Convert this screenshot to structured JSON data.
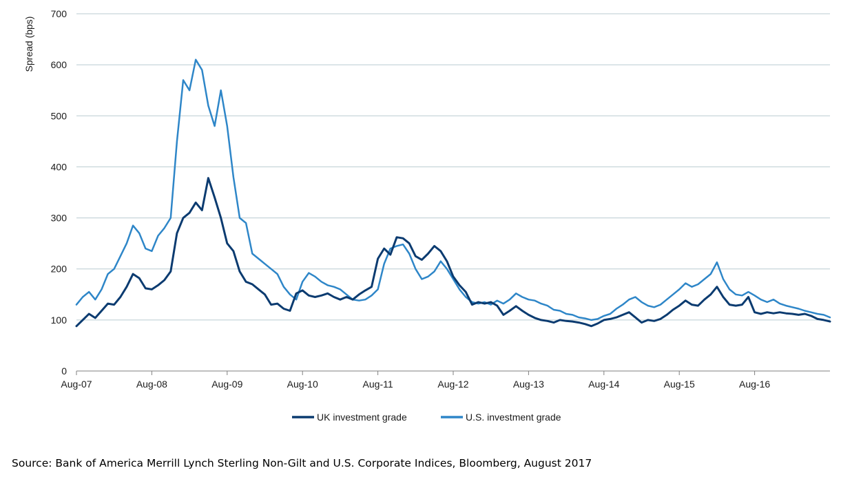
{
  "source": "Source: Bank of America Merrill Lynch Sterling Non-Gilt and U.S. Corporate Indices, Bloomberg, August 2017",
  "chart_data": {
    "type": "line",
    "ylabel": "Spread (bps)",
    "xlabel": "",
    "ylim": [
      0,
      700
    ],
    "yticks": [
      0,
      100,
      200,
      300,
      400,
      500,
      600,
      700
    ],
    "x_tick_labels": [
      "Aug-07",
      "Aug-08",
      "Aug-09",
      "Aug-10",
      "Aug-11",
      "Aug-12",
      "Aug-13",
      "Aug-14",
      "Aug-15",
      "Aug-16"
    ],
    "x_range": [
      "2007-08",
      "2017-08"
    ],
    "grid": "horizontal",
    "legend_position": "bottom",
    "series": [
      {
        "name": "UK investment grade",
        "color": "#0b3b70",
        "points": [
          [
            "2007-08",
            88
          ],
          [
            "2007-09",
            100
          ],
          [
            "2007-10",
            112
          ],
          [
            "2007-11",
            104
          ],
          [
            "2007-12",
            118
          ],
          [
            "2008-01",
            132
          ],
          [
            "2008-02",
            130
          ],
          [
            "2008-03",
            145
          ],
          [
            "2008-04",
            165
          ],
          [
            "2008-05",
            190
          ],
          [
            "2008-06",
            182
          ],
          [
            "2008-07",
            162
          ],
          [
            "2008-08",
            160
          ],
          [
            "2008-09",
            168
          ],
          [
            "2008-10",
            178
          ],
          [
            "2008-11",
            195
          ],
          [
            "2008-12",
            270
          ],
          [
            "2009-01",
            300
          ],
          [
            "2009-02",
            310
          ],
          [
            "2009-03",
            330
          ],
          [
            "2009-04",
            315
          ],
          [
            "2009-05",
            378
          ],
          [
            "2009-06",
            340
          ],
          [
            "2009-07",
            300
          ],
          [
            "2009-08",
            250
          ],
          [
            "2009-09",
            235
          ],
          [
            "2009-10",
            195
          ],
          [
            "2009-11",
            175
          ],
          [
            "2009-12",
            170
          ],
          [
            "2010-01",
            160
          ],
          [
            "2010-02",
            150
          ],
          [
            "2010-03",
            130
          ],
          [
            "2010-04",
            132
          ],
          [
            "2010-05",
            122
          ],
          [
            "2010-06",
            118
          ],
          [
            "2010-07",
            152
          ],
          [
            "2010-08",
            158
          ],
          [
            "2010-09",
            148
          ],
          [
            "2010-10",
            145
          ],
          [
            "2010-11",
            148
          ],
          [
            "2010-12",
            152
          ],
          [
            "2011-01",
            145
          ],
          [
            "2011-02",
            140
          ],
          [
            "2011-03",
            145
          ],
          [
            "2011-04",
            140
          ],
          [
            "2011-05",
            150
          ],
          [
            "2011-06",
            158
          ],
          [
            "2011-07",
            165
          ],
          [
            "2011-08",
            220
          ],
          [
            "2011-09",
            240
          ],
          [
            "2011-10",
            228
          ],
          [
            "2011-11",
            262
          ],
          [
            "2011-12",
            260
          ],
          [
            "2012-01",
            250
          ],
          [
            "2012-02",
            225
          ],
          [
            "2012-03",
            218
          ],
          [
            "2012-04",
            230
          ],
          [
            "2012-05",
            245
          ],
          [
            "2012-06",
            235
          ],
          [
            "2012-07",
            215
          ],
          [
            "2012-08",
            185
          ],
          [
            "2012-09",
            168
          ],
          [
            "2012-10",
            155
          ],
          [
            "2012-11",
            130
          ],
          [
            "2012-12",
            135
          ],
          [
            "2013-01",
            132
          ],
          [
            "2013-02",
            135
          ],
          [
            "2013-03",
            128
          ],
          [
            "2013-04",
            110
          ],
          [
            "2013-05",
            118
          ],
          [
            "2013-06",
            127
          ],
          [
            "2013-07",
            118
          ],
          [
            "2013-08",
            110
          ],
          [
            "2013-09",
            104
          ],
          [
            "2013-10",
            100
          ],
          [
            "2013-11",
            98
          ],
          [
            "2013-12",
            95
          ],
          [
            "2014-01",
            100
          ],
          [
            "2014-02",
            98
          ],
          [
            "2014-03",
            97
          ],
          [
            "2014-04",
            95
          ],
          [
            "2014-05",
            92
          ],
          [
            "2014-06",
            88
          ],
          [
            "2014-07",
            93
          ],
          [
            "2014-08",
            100
          ],
          [
            "2014-09",
            102
          ],
          [
            "2014-10",
            105
          ],
          [
            "2014-11",
            110
          ],
          [
            "2014-12",
            115
          ],
          [
            "2015-01",
            105
          ],
          [
            "2015-02",
            95
          ],
          [
            "2015-03",
            100
          ],
          [
            "2015-04",
            98
          ],
          [
            "2015-05",
            102
          ],
          [
            "2015-06",
            110
          ],
          [
            "2015-07",
            120
          ],
          [
            "2015-08",
            128
          ],
          [
            "2015-09",
            138
          ],
          [
            "2015-10",
            130
          ],
          [
            "2015-11",
            128
          ],
          [
            "2015-12",
            140
          ],
          [
            "2016-01",
            150
          ],
          [
            "2016-02",
            165
          ],
          [
            "2016-03",
            145
          ],
          [
            "2016-04",
            130
          ],
          [
            "2016-05",
            128
          ],
          [
            "2016-06",
            130
          ],
          [
            "2016-07",
            145
          ],
          [
            "2016-08",
            115
          ],
          [
            "2016-09",
            112
          ],
          [
            "2016-10",
            115
          ],
          [
            "2016-11",
            113
          ],
          [
            "2016-12",
            115
          ],
          [
            "2017-01",
            113
          ],
          [
            "2017-02",
            112
          ],
          [
            "2017-03",
            110
          ],
          [
            "2017-04",
            112
          ],
          [
            "2017-05",
            108
          ],
          [
            "2017-06",
            102
          ],
          [
            "2017-07",
            100
          ],
          [
            "2017-08",
            97
          ]
        ]
      },
      {
        "name": "U.S. investment grade",
        "color": "#2e86c8",
        "points": [
          [
            "2007-08",
            130
          ],
          [
            "2007-09",
            145
          ],
          [
            "2007-10",
            155
          ],
          [
            "2007-11",
            140
          ],
          [
            "2007-12",
            160
          ],
          [
            "2008-01",
            190
          ],
          [
            "2008-02",
            200
          ],
          [
            "2008-03",
            225
          ],
          [
            "2008-04",
            250
          ],
          [
            "2008-05",
            285
          ],
          [
            "2008-06",
            270
          ],
          [
            "2008-07",
            240
          ],
          [
            "2008-08",
            235
          ],
          [
            "2008-09",
            265
          ],
          [
            "2008-10",
            280
          ],
          [
            "2008-11",
            300
          ],
          [
            "2008-12",
            450
          ],
          [
            "2009-01",
            570
          ],
          [
            "2009-02",
            550
          ],
          [
            "2009-03",
            610
          ],
          [
            "2009-04",
            590
          ],
          [
            "2009-05",
            520
          ],
          [
            "2009-06",
            480
          ],
          [
            "2009-07",
            550
          ],
          [
            "2009-08",
            480
          ],
          [
            "2009-09",
            380
          ],
          [
            "2009-10",
            300
          ],
          [
            "2009-11",
            290
          ],
          [
            "2009-12",
            230
          ],
          [
            "2010-01",
            220
          ],
          [
            "2010-02",
            210
          ],
          [
            "2010-03",
            200
          ],
          [
            "2010-04",
            190
          ],
          [
            "2010-05",
            165
          ],
          [
            "2010-06",
            150
          ],
          [
            "2010-07",
            140
          ],
          [
            "2010-08",
            175
          ],
          [
            "2010-09",
            192
          ],
          [
            "2010-10",
            185
          ],
          [
            "2010-11",
            175
          ],
          [
            "2010-12",
            168
          ],
          [
            "2011-01",
            165
          ],
          [
            "2011-02",
            160
          ],
          [
            "2011-03",
            150
          ],
          [
            "2011-04",
            140
          ],
          [
            "2011-05",
            138
          ],
          [
            "2011-06",
            140
          ],
          [
            "2011-07",
            148
          ],
          [
            "2011-08",
            160
          ],
          [
            "2011-09",
            210
          ],
          [
            "2011-10",
            240
          ],
          [
            "2011-11",
            245
          ],
          [
            "2011-12",
            248
          ],
          [
            "2012-01",
            230
          ],
          [
            "2012-02",
            200
          ],
          [
            "2012-03",
            180
          ],
          [
            "2012-04",
            185
          ],
          [
            "2012-05",
            195
          ],
          [
            "2012-06",
            215
          ],
          [
            "2012-07",
            200
          ],
          [
            "2012-08",
            180
          ],
          [
            "2012-09",
            160
          ],
          [
            "2012-10",
            145
          ],
          [
            "2012-11",
            135
          ],
          [
            "2012-12",
            132
          ],
          [
            "2013-01",
            135
          ],
          [
            "2013-02",
            130
          ],
          [
            "2013-03",
            138
          ],
          [
            "2013-04",
            132
          ],
          [
            "2013-05",
            140
          ],
          [
            "2013-06",
            152
          ],
          [
            "2013-07",
            145
          ],
          [
            "2013-08",
            140
          ],
          [
            "2013-09",
            138
          ],
          [
            "2013-10",
            132
          ],
          [
            "2013-11",
            128
          ],
          [
            "2013-12",
            120
          ],
          [
            "2014-01",
            118
          ],
          [
            "2014-02",
            112
          ],
          [
            "2014-03",
            110
          ],
          [
            "2014-04",
            105
          ],
          [
            "2014-05",
            103
          ],
          [
            "2014-06",
            100
          ],
          [
            "2014-07",
            102
          ],
          [
            "2014-08",
            108
          ],
          [
            "2014-09",
            112
          ],
          [
            "2014-10",
            122
          ],
          [
            "2014-11",
            130
          ],
          [
            "2014-12",
            140
          ],
          [
            "2015-01",
            145
          ],
          [
            "2015-02",
            135
          ],
          [
            "2015-03",
            128
          ],
          [
            "2015-04",
            125
          ],
          [
            "2015-05",
            130
          ],
          [
            "2015-06",
            140
          ],
          [
            "2015-07",
            150
          ],
          [
            "2015-08",
            160
          ],
          [
            "2015-09",
            172
          ],
          [
            "2015-10",
            165
          ],
          [
            "2015-11",
            170
          ],
          [
            "2015-12",
            180
          ],
          [
            "2016-01",
            190
          ],
          [
            "2016-02",
            213
          ],
          [
            "2016-03",
            180
          ],
          [
            "2016-04",
            160
          ],
          [
            "2016-05",
            150
          ],
          [
            "2016-06",
            148
          ],
          [
            "2016-07",
            155
          ],
          [
            "2016-08",
            148
          ],
          [
            "2016-09",
            140
          ],
          [
            "2016-10",
            135
          ],
          [
            "2016-11",
            140
          ],
          [
            "2016-12",
            132
          ],
          [
            "2017-01",
            128
          ],
          [
            "2017-02",
            125
          ],
          [
            "2017-03",
            122
          ],
          [
            "2017-04",
            118
          ],
          [
            "2017-05",
            115
          ],
          [
            "2017-06",
            112
          ],
          [
            "2017-07",
            110
          ],
          [
            "2017-08",
            105
          ]
        ]
      }
    ]
  }
}
